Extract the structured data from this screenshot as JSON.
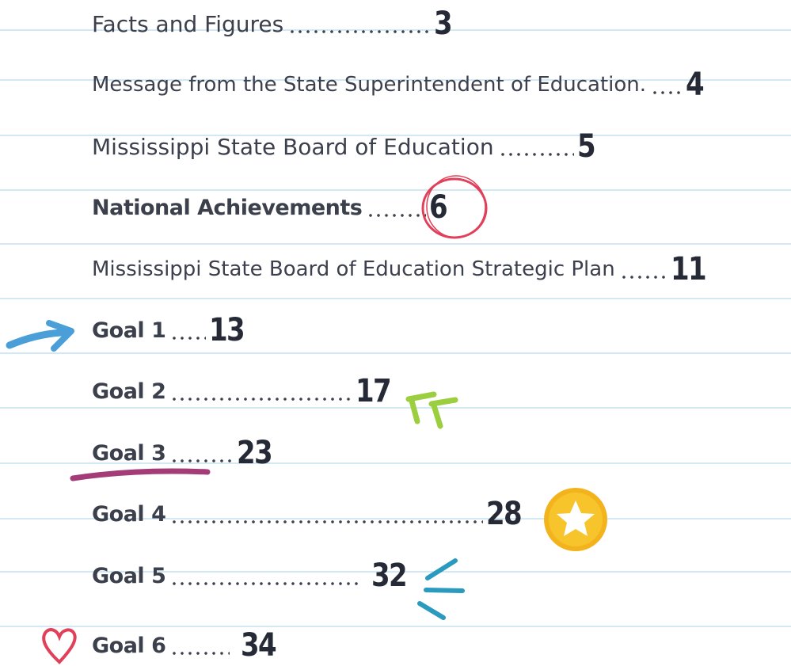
{
  "entries": [
    {
      "title": "Facts and Figures",
      "page": "3"
    },
    {
      "title": "Message from the State Superintendent of Education.",
      "page": "4"
    },
    {
      "title": "Mississippi State Board of Education",
      "page": "5"
    },
    {
      "title": "National Achievements",
      "page": "6"
    },
    {
      "title": "Mississippi State Board of Education Strategic Plan",
      "page": "11"
    },
    {
      "title": "Goal 1",
      "page": "13"
    },
    {
      "title": "Goal 2",
      "page": "17"
    },
    {
      "title": "Goal 3",
      "page": "23"
    },
    {
      "title": "Goal 4",
      "page": "28"
    },
    {
      "title": "Goal 5",
      "page": "32"
    },
    {
      "title": "Goal 6",
      "page": "34"
    }
  ]
}
